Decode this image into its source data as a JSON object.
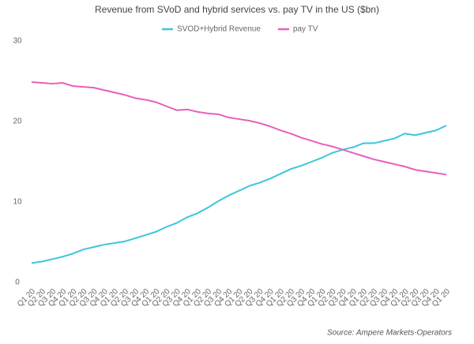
{
  "chart_data": {
    "type": "line",
    "title": "Revenue from SVoD and hybrid services vs. pay TV in the US ($bn)",
    "source": "Source: Ampere Markets-Operators",
    "categories": [
      "Q1 20",
      "Q2 20",
      "Q3 20",
      "Q4 20",
      "Q1 20",
      "Q2 20",
      "Q3 20",
      "Q4 20",
      "Q1 20",
      "Q2 20",
      "Q3 20",
      "Q4 20",
      "Q1 20",
      "Q2 20",
      "Q3 20",
      "Q4 20",
      "Q1 20",
      "Q2 20",
      "Q3 20",
      "Q4 20",
      "Q1 20",
      "Q2 20",
      "Q3 20",
      "Q4 20",
      "Q1 20",
      "Q2 20",
      "Q3 20",
      "Q4 20",
      "Q1 20",
      "Q2 20",
      "Q3 20",
      "Q4 20",
      "Q1 20",
      "Q2 20",
      "Q3 20",
      "Q4 20",
      "Q1 20",
      "Q2 20",
      "Q3 20",
      "Q4 20",
      "Q1 20"
    ],
    "series": [
      {
        "name": "SVOD+Hybrid Revenue",
        "color": "#3cc6dc",
        "values": [
          2.4,
          2.6,
          2.9,
          3.2,
          3.6,
          4.1,
          4.4,
          4.7,
          4.9,
          5.1,
          5.5,
          5.9,
          6.3,
          6.9,
          7.4,
          8.1,
          8.6,
          9.3,
          10.1,
          10.8,
          11.4,
          12.0,
          12.4,
          12.9,
          13.5,
          14.1,
          14.5,
          15.0,
          15.5,
          16.1,
          16.5,
          16.8,
          17.3,
          17.3,
          17.6,
          17.9,
          18.5,
          18.3,
          18.6,
          18.9,
          19.5
        ]
      },
      {
        "name": "pay TV",
        "color": "#e85fb8",
        "values": [
          24.9,
          24.8,
          24.7,
          24.8,
          24.4,
          24.3,
          24.2,
          23.9,
          23.6,
          23.3,
          22.9,
          22.7,
          22.4,
          21.9,
          21.4,
          21.5,
          21.2,
          21.0,
          20.9,
          20.5,
          20.3,
          20.1,
          19.8,
          19.4,
          18.9,
          18.5,
          18.0,
          17.6,
          17.2,
          16.9,
          16.5,
          16.1,
          15.7,
          15.3,
          15.0,
          14.7,
          14.4,
          14.0,
          13.8,
          13.6,
          13.4
        ]
      }
    ],
    "ylim": [
      0,
      30
    ],
    "yticks": [
      0,
      10,
      20,
      30
    ],
    "grid": false,
    "legend": "top"
  }
}
